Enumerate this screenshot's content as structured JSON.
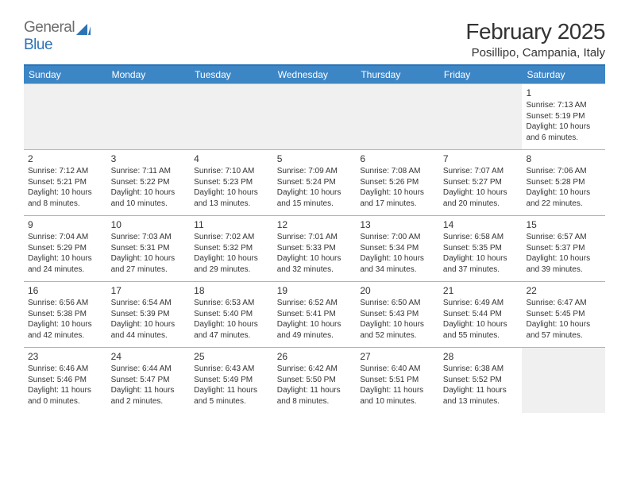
{
  "logo": {
    "text1": "General",
    "text2": "Blue"
  },
  "title": "February 2025",
  "location": "Posillipo, Campania, Italy",
  "colors": {
    "header_bg": "#3d86c6",
    "header_border": "#2B73B7",
    "row_border": "#9db9d6",
    "text": "#333333",
    "logo_gray": "#6c6c6c",
    "logo_blue": "#2B73B7",
    "empty_bg": "#f0f0f0",
    "background": "#ffffff"
  },
  "dayHeaders": [
    "Sunday",
    "Monday",
    "Tuesday",
    "Wednesday",
    "Thursday",
    "Friday",
    "Saturday"
  ],
  "weeks": [
    [
      null,
      null,
      null,
      null,
      null,
      null,
      {
        "n": "1",
        "sunrise": "Sunrise: 7:13 AM",
        "sunset": "Sunset: 5:19 PM",
        "daylight": "Daylight: 10 hours and 6 minutes."
      }
    ],
    [
      {
        "n": "2",
        "sunrise": "Sunrise: 7:12 AM",
        "sunset": "Sunset: 5:21 PM",
        "daylight": "Daylight: 10 hours and 8 minutes."
      },
      {
        "n": "3",
        "sunrise": "Sunrise: 7:11 AM",
        "sunset": "Sunset: 5:22 PM",
        "daylight": "Daylight: 10 hours and 10 minutes."
      },
      {
        "n": "4",
        "sunrise": "Sunrise: 7:10 AM",
        "sunset": "Sunset: 5:23 PM",
        "daylight": "Daylight: 10 hours and 13 minutes."
      },
      {
        "n": "5",
        "sunrise": "Sunrise: 7:09 AM",
        "sunset": "Sunset: 5:24 PM",
        "daylight": "Daylight: 10 hours and 15 minutes."
      },
      {
        "n": "6",
        "sunrise": "Sunrise: 7:08 AM",
        "sunset": "Sunset: 5:26 PM",
        "daylight": "Daylight: 10 hours and 17 minutes."
      },
      {
        "n": "7",
        "sunrise": "Sunrise: 7:07 AM",
        "sunset": "Sunset: 5:27 PM",
        "daylight": "Daylight: 10 hours and 20 minutes."
      },
      {
        "n": "8",
        "sunrise": "Sunrise: 7:06 AM",
        "sunset": "Sunset: 5:28 PM",
        "daylight": "Daylight: 10 hours and 22 minutes."
      }
    ],
    [
      {
        "n": "9",
        "sunrise": "Sunrise: 7:04 AM",
        "sunset": "Sunset: 5:29 PM",
        "daylight": "Daylight: 10 hours and 24 minutes."
      },
      {
        "n": "10",
        "sunrise": "Sunrise: 7:03 AM",
        "sunset": "Sunset: 5:31 PM",
        "daylight": "Daylight: 10 hours and 27 minutes."
      },
      {
        "n": "11",
        "sunrise": "Sunrise: 7:02 AM",
        "sunset": "Sunset: 5:32 PM",
        "daylight": "Daylight: 10 hours and 29 minutes."
      },
      {
        "n": "12",
        "sunrise": "Sunrise: 7:01 AM",
        "sunset": "Sunset: 5:33 PM",
        "daylight": "Daylight: 10 hours and 32 minutes."
      },
      {
        "n": "13",
        "sunrise": "Sunrise: 7:00 AM",
        "sunset": "Sunset: 5:34 PM",
        "daylight": "Daylight: 10 hours and 34 minutes."
      },
      {
        "n": "14",
        "sunrise": "Sunrise: 6:58 AM",
        "sunset": "Sunset: 5:35 PM",
        "daylight": "Daylight: 10 hours and 37 minutes."
      },
      {
        "n": "15",
        "sunrise": "Sunrise: 6:57 AM",
        "sunset": "Sunset: 5:37 PM",
        "daylight": "Daylight: 10 hours and 39 minutes."
      }
    ],
    [
      {
        "n": "16",
        "sunrise": "Sunrise: 6:56 AM",
        "sunset": "Sunset: 5:38 PM",
        "daylight": "Daylight: 10 hours and 42 minutes."
      },
      {
        "n": "17",
        "sunrise": "Sunrise: 6:54 AM",
        "sunset": "Sunset: 5:39 PM",
        "daylight": "Daylight: 10 hours and 44 minutes."
      },
      {
        "n": "18",
        "sunrise": "Sunrise: 6:53 AM",
        "sunset": "Sunset: 5:40 PM",
        "daylight": "Daylight: 10 hours and 47 minutes."
      },
      {
        "n": "19",
        "sunrise": "Sunrise: 6:52 AM",
        "sunset": "Sunset: 5:41 PM",
        "daylight": "Daylight: 10 hours and 49 minutes."
      },
      {
        "n": "20",
        "sunrise": "Sunrise: 6:50 AM",
        "sunset": "Sunset: 5:43 PM",
        "daylight": "Daylight: 10 hours and 52 minutes."
      },
      {
        "n": "21",
        "sunrise": "Sunrise: 6:49 AM",
        "sunset": "Sunset: 5:44 PM",
        "daylight": "Daylight: 10 hours and 55 minutes."
      },
      {
        "n": "22",
        "sunrise": "Sunrise: 6:47 AM",
        "sunset": "Sunset: 5:45 PM",
        "daylight": "Daylight: 10 hours and 57 minutes."
      }
    ],
    [
      {
        "n": "23",
        "sunrise": "Sunrise: 6:46 AM",
        "sunset": "Sunset: 5:46 PM",
        "daylight": "Daylight: 11 hours and 0 minutes."
      },
      {
        "n": "24",
        "sunrise": "Sunrise: 6:44 AM",
        "sunset": "Sunset: 5:47 PM",
        "daylight": "Daylight: 11 hours and 2 minutes."
      },
      {
        "n": "25",
        "sunrise": "Sunrise: 6:43 AM",
        "sunset": "Sunset: 5:49 PM",
        "daylight": "Daylight: 11 hours and 5 minutes."
      },
      {
        "n": "26",
        "sunrise": "Sunrise: 6:42 AM",
        "sunset": "Sunset: 5:50 PM",
        "daylight": "Daylight: 11 hours and 8 minutes."
      },
      {
        "n": "27",
        "sunrise": "Sunrise: 6:40 AM",
        "sunset": "Sunset: 5:51 PM",
        "daylight": "Daylight: 11 hours and 10 minutes."
      },
      {
        "n": "28",
        "sunrise": "Sunrise: 6:38 AM",
        "sunset": "Sunset: 5:52 PM",
        "daylight": "Daylight: 11 hours and 13 minutes."
      },
      null
    ]
  ]
}
